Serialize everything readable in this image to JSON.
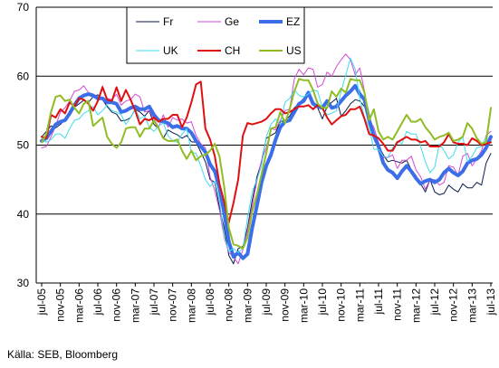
{
  "source_note": "Källa: SEB, Bloomberg",
  "chart_data": {
    "type": "line",
    "title": "",
    "xlabel": "",
    "ylabel": "",
    "ylim": [
      30,
      70
    ],
    "yticks": [
      30,
      40,
      50,
      60,
      70
    ],
    "grid": "horizontal",
    "legend_position": "top-center",
    "x": [
      "2005-07",
      "2005-08",
      "2005-09",
      "2005-10",
      "2005-11",
      "2005-12",
      "2006-01",
      "2006-02",
      "2006-03",
      "2006-04",
      "2006-05",
      "2006-06",
      "2006-07",
      "2006-08",
      "2006-09",
      "2006-10",
      "2006-11",
      "2006-12",
      "2007-01",
      "2007-02",
      "2007-03",
      "2007-04",
      "2007-05",
      "2007-06",
      "2007-07",
      "2007-08",
      "2007-09",
      "2007-10",
      "2007-11",
      "2007-12",
      "2008-01",
      "2008-02",
      "2008-03",
      "2008-04",
      "2008-05",
      "2008-06",
      "2008-07",
      "2008-08",
      "2008-09",
      "2008-10",
      "2008-11",
      "2008-12",
      "2009-01",
      "2009-02",
      "2009-03",
      "2009-04",
      "2009-05",
      "2009-06",
      "2009-07",
      "2009-08",
      "2009-09",
      "2009-10",
      "2009-11",
      "2009-12",
      "2010-01",
      "2010-02",
      "2010-03",
      "2010-04",
      "2010-05",
      "2010-06",
      "2010-07",
      "2010-08",
      "2010-09",
      "2010-10",
      "2010-11",
      "2010-12",
      "2011-01",
      "2011-02",
      "2011-03",
      "2011-04",
      "2011-05",
      "2011-06",
      "2011-07",
      "2011-08",
      "2011-09",
      "2011-10",
      "2011-11",
      "2011-12",
      "2012-01",
      "2012-02",
      "2012-03",
      "2012-04",
      "2012-05",
      "2012-06",
      "2012-07",
      "2012-08",
      "2012-09",
      "2012-10",
      "2012-11",
      "2012-12",
      "2013-01",
      "2013-02",
      "2013-03",
      "2013-04",
      "2013-05",
      "2013-06",
      "2013-07"
    ],
    "x_tick_labels": [
      "jul-05",
      "nov-05",
      "mar-06",
      "jul-06",
      "nov-06",
      "mar-07",
      "jul-07",
      "nov-07",
      "mar-08",
      "jul-08",
      "nov-08",
      "mar-09",
      "jul-09",
      "nov-09",
      "mar-10",
      "jul-10",
      "nov-10",
      "mar-11",
      "jul-11",
      "nov-11",
      "mar-12",
      "jul-12",
      "nov-12",
      "mar-13",
      "jul-13"
    ],
    "series": [
      {
        "name": "Fr",
        "color": "#0a1a4a",
        "width": 1,
        "values": [
          51.2,
          52.0,
          52.8,
          52.5,
          53.0,
          53.8,
          54.5,
          55.5,
          56.0,
          56.5,
          56.2,
          57.0,
          57.3,
          56.6,
          55.6,
          54.8,
          54.5,
          53.5,
          53.6,
          54.0,
          55.2,
          54.8,
          54.2,
          55.0,
          53.0,
          52.4,
          51.0,
          52.2,
          51.8,
          51.5,
          51.0,
          51.4,
          50.5,
          50.4,
          49.0,
          47.6,
          45.0,
          44.6,
          41.0,
          38.0,
          34.0,
          32.8,
          35.0,
          35.3,
          38.0,
          42.0,
          45.4,
          47.6,
          51.0,
          51.4,
          51.8,
          53.4,
          53.6,
          54.2,
          55.4,
          56.0,
          56.8,
          57.4,
          56.4,
          55.4,
          53.8,
          55.6,
          56.2,
          56.8,
          54.2,
          55.0,
          56.0,
          56.6,
          56.4,
          55.6,
          54.0,
          51.5,
          50.0,
          48.6,
          47.6,
          47.8,
          47.6,
          47.4,
          47.8,
          46.4,
          45.6,
          44.4,
          43.2,
          45.0,
          43.2,
          42.8,
          43.0,
          44.2,
          43.6,
          43.2,
          44.4,
          43.8,
          43.8,
          44.6,
          44.2,
          47.4,
          48.8
        ]
      },
      {
        "name": "Ge",
        "color": "#d44ad4",
        "width": 1,
        "values": [
          49.6,
          49.8,
          51.2,
          52.8,
          54.8,
          55.4,
          56.4,
          57.8,
          58.0,
          58.6,
          57.6,
          57.4,
          56.4,
          58.6,
          56.8,
          56.6,
          57.4,
          55.8,
          56.4,
          56.6,
          57.4,
          57.0,
          54.8,
          55.0,
          53.8,
          52.6,
          54.4,
          52.6,
          54.0,
          53.6,
          53.8,
          53.2,
          53.4,
          51.4,
          50.2,
          49.6,
          45.4,
          43.4,
          40.6,
          36.6,
          34.4,
          33.8,
          32.8,
          34.8,
          37.6,
          41.2,
          44.8,
          47.8,
          49.6,
          52.4,
          52.2,
          53.6,
          55.0,
          55.2,
          59.6,
          61.0,
          60.2,
          61.2,
          61.0,
          58.4,
          58.8,
          60.6,
          60.0,
          61.4,
          62.4,
          63.2,
          62.4,
          60.2,
          61.2,
          57.8,
          53.6,
          52.6,
          50.4,
          48.2,
          48.2,
          48.6,
          46.6,
          47.8,
          47.8,
          48.4,
          46.4,
          45.4,
          43.6,
          45.0,
          45.0,
          44.2,
          44.6,
          47.0,
          46.8,
          45.6,
          48.4,
          48.8,
          47.0,
          48.0,
          49.2,
          51.4,
          52.0
        ]
      },
      {
        "name": "EZ",
        "color": "#3b6ee8",
        "width": 4,
        "values": [
          50.6,
          51.0,
          52.0,
          53.0,
          53.4,
          53.6,
          54.6,
          55.8,
          56.8,
          57.2,
          57.4,
          57.2,
          56.8,
          56.8,
          56.2,
          56.2,
          56.0,
          54.8,
          55.0,
          55.4,
          55.6,
          55.2,
          55.2,
          55.6,
          54.4,
          53.6,
          53.4,
          53.2,
          52.6,
          52.8,
          52.4,
          52.4,
          51.8,
          50.6,
          49.8,
          49.0,
          47.2,
          46.2,
          43.8,
          40.2,
          36.0,
          33.8,
          34.4,
          33.6,
          34.2,
          38.0,
          41.2,
          44.6,
          47.0,
          48.6,
          50.8,
          52.6,
          53.4,
          53.6,
          54.8,
          56.0,
          56.4,
          57.6,
          56.0,
          55.6,
          55.4,
          56.4,
          55.4,
          55.6,
          56.4,
          57.2,
          57.8,
          58.6,
          57.4,
          56.6,
          53.6,
          51.4,
          49.8,
          47.4,
          46.4,
          46.0,
          45.2,
          46.2,
          47.0,
          46.2,
          45.2,
          44.4,
          44.8,
          45.0,
          44.6,
          45.0,
          46.0,
          46.6,
          46.0,
          45.6,
          46.2,
          47.4,
          47.8,
          48.0,
          48.6,
          49.6,
          51.2
        ]
      },
      {
        "name": "UK",
        "color": "#40dcec",
        "width": 1,
        "values": [
          51.0,
          50.4,
          50.8,
          51.6,
          51.6,
          51.0,
          52.4,
          53.6,
          53.8,
          54.6,
          55.0,
          55.6,
          54.4,
          55.0,
          55.8,
          55.0,
          54.8,
          54.4,
          53.0,
          54.0,
          55.2,
          53.8,
          54.2,
          52.6,
          52.0,
          52.8,
          53.2,
          51.4,
          50.6,
          50.4,
          51.6,
          52.4,
          49.0,
          48.8,
          47.0,
          45.0,
          44.0,
          44.8,
          42.0,
          36.8,
          34.6,
          35.0,
          34.4,
          35.0,
          39.4,
          43.2,
          45.0,
          47.0,
          51.2,
          53.0,
          53.8,
          53.0,
          56.2,
          56.8,
          58.0,
          57.2,
          57.0,
          57.4,
          58.0,
          57.8,
          55.4,
          54.4,
          54.6,
          55.0,
          57.8,
          60.2,
          62.6,
          61.0,
          56.8,
          54.0,
          52.6,
          49.4,
          49.4,
          48.4,
          48.2,
          49.6,
          50.6,
          50.2,
          52.0,
          51.6,
          51.6,
          49.8,
          47.6,
          46.0,
          46.8,
          50.2,
          49.2,
          48.0,
          48.6,
          50.4,
          51.2,
          47.6,
          48.4,
          49.6,
          49.8,
          51.2,
          54.8
        ]
      },
      {
        "name": "CH",
        "color": "#e01010",
        "width": 2,
        "values": [
          51.2,
          51.0,
          54.4,
          54.0,
          55.2,
          54.6,
          56.2,
          55.6,
          56.8,
          56.6,
          56.0,
          55.0,
          56.4,
          58.4,
          56.6,
          56.4,
          58.4,
          56.4,
          58.0,
          56.6,
          55.0,
          53.0,
          53.8,
          53.6,
          54.0,
          53.4,
          53.8,
          53.8,
          54.4,
          54.4,
          52.6,
          54.0,
          56.2,
          58.8,
          59.2,
          52.4,
          50.8,
          48.4,
          44.4,
          41.8,
          38.8,
          41.6,
          45.0,
          51.4,
          53.2,
          53.0,
          53.2,
          53.4,
          53.8,
          54.6,
          55.2,
          55.2,
          54.6,
          54.8,
          55.2,
          55.6,
          55.6,
          55.8,
          55.2,
          55.8,
          55.4,
          54.0,
          53.0,
          53.6,
          54.2,
          54.4,
          55.2,
          55.2,
          55.6,
          53.8,
          51.6,
          51.4,
          51.0,
          50.2,
          49.2,
          49.2,
          50.4,
          50.8,
          51.2,
          50.8,
          50.8,
          50.4,
          50.6,
          49.8,
          49.8,
          49.8,
          50.4,
          51.6,
          50.4,
          50.2,
          50.2,
          50.0,
          51.0,
          50.6,
          50.0,
          50.2,
          50.4
        ]
      },
      {
        "name": "US",
        "color": "#90bc24",
        "width": 2,
        "values": [
          50.4,
          51.6,
          54.8,
          57.0,
          57.2,
          56.4,
          56.6,
          55.4,
          54.6,
          56.0,
          56.4,
          52.8,
          53.4,
          54.0,
          51.2,
          50.2,
          49.6,
          50.4,
          52.4,
          52.6,
          52.6,
          51.2,
          52.4,
          52.4,
          53.6,
          52.4,
          51.0,
          50.6,
          50.6,
          50.8,
          49.2,
          48.0,
          49.2,
          47.8,
          48.4,
          48.6,
          49.2,
          50.2,
          48.4,
          44.0,
          38.0,
          35.6,
          35.4,
          35.0,
          36.6,
          40.4,
          42.8,
          45.8,
          48.8,
          52.4,
          52.6,
          54.8,
          53.2,
          55.2,
          57.8,
          59.6,
          59.4,
          59.4,
          58.0,
          56.0,
          55.4,
          55.4,
          57.8,
          57.0,
          58.2,
          57.6,
          59.6,
          59.4,
          59.4,
          57.6,
          53.6,
          55.2,
          52.0,
          50.8,
          51.2,
          50.8,
          52.0,
          53.2,
          54.4,
          53.4,
          53.4,
          53.8,
          52.6,
          51.8,
          50.8,
          51.2,
          51.4,
          51.8,
          50.6,
          50.8,
          51.2,
          53.2,
          52.4,
          51.0,
          50.2,
          50.4,
          55.4
        ]
      }
    ]
  }
}
